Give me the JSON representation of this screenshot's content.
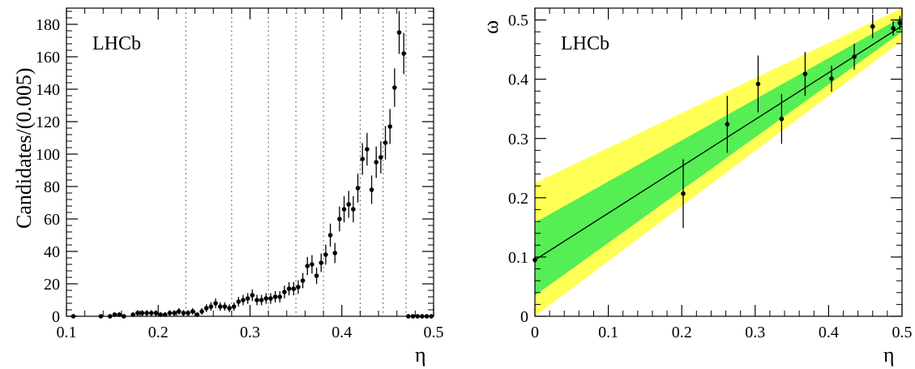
{
  "chart_data": [
    {
      "type": "scatter",
      "title": "",
      "label": "LHCb",
      "xlabel": "η",
      "ylabel": "Candidates/(0.005)",
      "xlim": [
        0.1,
        0.5
      ],
      "ylim": [
        0,
        190
      ],
      "xticks": [
        0.1,
        0.2,
        0.3,
        0.4,
        0.5
      ],
      "xtick_labels": [
        "0.1",
        "0.2",
        "0.3",
        "0.4",
        "0.5"
      ],
      "yticks": [
        0,
        20,
        40,
        60,
        80,
        100,
        120,
        140,
        160,
        180
      ],
      "ytick_labels": [
        "0",
        "20",
        "40",
        "60",
        "80",
        "100",
        "120",
        "140",
        "160",
        "180"
      ],
      "bin_boundaries": [
        0.23,
        0.28,
        0.32,
        0.35,
        0.38,
        0.42,
        0.445,
        0.47
      ],
      "series": [
        {
          "x": [
            0.1075,
            0.1375,
            0.1475,
            0.1525,
            0.1575,
            0.1625,
            0.1725,
            0.1775,
            0.1825,
            0.1875,
            0.1925,
            0.1975,
            0.2025,
            0.2075,
            0.2125,
            0.2175,
            0.2225,
            0.2275,
            0.2325,
            0.2375,
            0.2425,
            0.2475,
            0.2525,
            0.2575,
            0.2625,
            0.2675,
            0.2725,
            0.2775,
            0.2825,
            0.2875,
            0.2925,
            0.2975,
            0.3025,
            0.3075,
            0.3125,
            0.3175,
            0.3225,
            0.3275,
            0.3325,
            0.3375,
            0.3425,
            0.3475,
            0.3525,
            0.3575,
            0.3625,
            0.3675,
            0.3725,
            0.3775,
            0.3825,
            0.3875,
            0.3925,
            0.3975,
            0.4025,
            0.4075,
            0.4125,
            0.4175,
            0.4225,
            0.4275,
            0.4325,
            0.4375,
            0.4425,
            0.4475,
            0.4525,
            0.4575,
            0.4625,
            0.4675,
            0.4725,
            0.4775,
            0.4825,
            0.4875,
            0.4925,
            0.4975
          ],
          "y": [
            0,
            0,
            0,
            1,
            1,
            0,
            1,
            2,
            2,
            2,
            2,
            2,
            1,
            1,
            2,
            2,
            3,
            2,
            2,
            3,
            1,
            3,
            5,
            6,
            8,
            6,
            6,
            5,
            6,
            9,
            10,
            11,
            13,
            10,
            10,
            11,
            11,
            12,
            12,
            15,
            17,
            17,
            18,
            22,
            31,
            32,
            25,
            33,
            38,
            50,
            39,
            60,
            66,
            69,
            66,
            79,
            97,
            103,
            78,
            95,
            98,
            107,
            117,
            141,
            175,
            162,
            0,
            0,
            0,
            0,
            0,
            0
          ],
          "yerr": [
            1,
            1,
            1,
            1.5,
            1.5,
            1,
            1.5,
            1.8,
            1.8,
            1.8,
            1.8,
            1.8,
            1.5,
            1.5,
            1.8,
            1.8,
            2,
            1.8,
            1.8,
            2,
            1.5,
            2,
            2.4,
            2.6,
            3,
            2.6,
            2.6,
            2.4,
            2.6,
            3,
            3.2,
            3.3,
            3.6,
            3.2,
            3.2,
            3.3,
            3.3,
            3.5,
            3.5,
            3.9,
            4.1,
            4.1,
            4.2,
            4.7,
            5.6,
            5.7,
            5,
            5.7,
            6.2,
            7.1,
            6.2,
            7.7,
            8.1,
            8.3,
            8.1,
            8.9,
            9.8,
            10.1,
            8.8,
            9.7,
            9.9,
            10.3,
            10.8,
            11.9,
            13.2,
            12.7,
            0,
            0,
            0,
            0,
            0,
            0
          ]
        }
      ]
    },
    {
      "type": "scatter",
      "title": "",
      "label": "LHCb",
      "xlabel": "η",
      "ylabel": "ω",
      "xlim": [
        0,
        0.5
      ],
      "ylim": [
        0,
        0.52
      ],
      "xticks": [
        0,
        0.1,
        0.2,
        0.3,
        0.4,
        0.5
      ],
      "xtick_labels": [
        "0",
        "0.1",
        "0.2",
        "0.3",
        "0.4",
        "0.5"
      ],
      "yticks": [
        0,
        0.1,
        0.2,
        0.3,
        0.4,
        0.5
      ],
      "ytick_labels": [
        "0",
        "0.1",
        "0.2",
        "0.3",
        "0.4",
        "0.5"
      ],
      "fit": {
        "p0": 0.095,
        "p1": 0.79
      },
      "band_1sigma": {
        "at_x0": [
          0.035,
          0.158
        ],
        "at_x05": [
          0.48,
          0.505
        ]
      },
      "band_2sigma": {
        "at_x0": [
          -0.03,
          0.225
        ],
        "at_x05": [
          0.465,
          0.52
        ]
      },
      "colors": {
        "band_1sigma": "#55ee55",
        "band_2sigma": "#ffff55",
        "fit_line": "#000000"
      },
      "series": [
        {
          "x": [
            0,
            0.202,
            0.262,
            0.304,
            0.336,
            0.368,
            0.404,
            0.435,
            0.46,
            0.488,
            0.497
          ],
          "y": [
            0.095,
            0.207,
            0.324,
            0.392,
            0.333,
            0.409,
            0.401,
            0.438,
            0.489,
            0.486,
            0.495
          ],
          "yerr": [
            0.005,
            0.058,
            0.048,
            0.048,
            0.042,
            0.037,
            0.022,
            0.022,
            0.02,
            0.012,
            0.012
          ]
        }
      ]
    }
  ]
}
